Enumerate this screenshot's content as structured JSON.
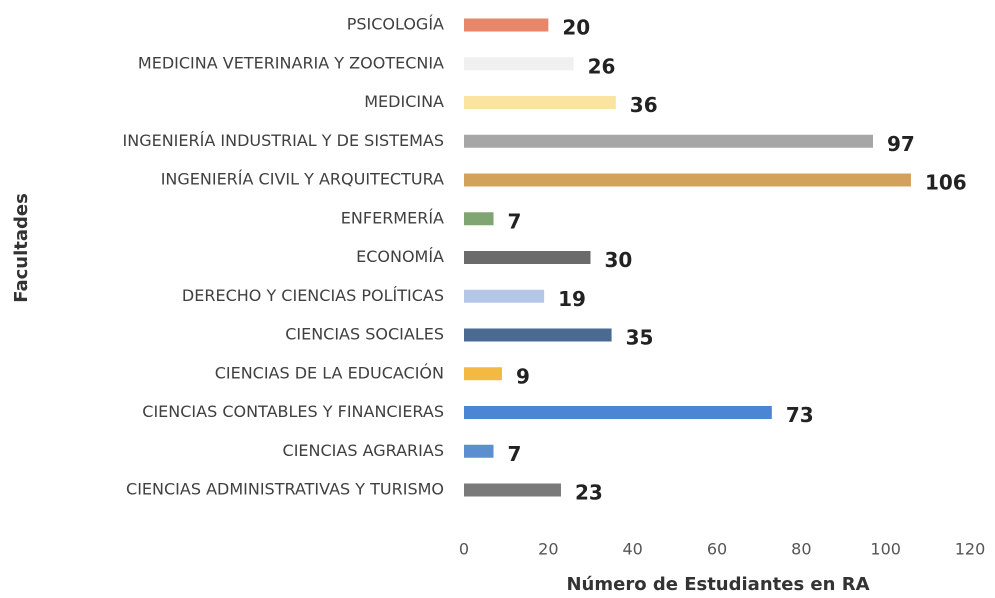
{
  "chart_data": {
    "type": "bar",
    "orientation": "horizontal",
    "x_label": "Número de Estudiantes en RA",
    "y_label": "Facultades",
    "categories": [
      "PSICOLOGÍA",
      "MEDICINA VETERINARIA Y ZOOTECNIA",
      "MEDICINA",
      "INGENIERÍA INDUSTRIAL Y DE SISTEMAS",
      "INGENIERÍA CIVIL Y ARQUITECTURA",
      "ENFERMERÍA",
      "ECONOMÍA",
      "DERECHO Y CIENCIAS POLÍTICAS",
      "CIENCIAS SOCIALES",
      "CIENCIAS DE LA EDUCACIÓN",
      "CIENCIAS CONTABLES Y FINANCIERAS",
      "CIENCIAS AGRARIAS",
      "CIENCIAS ADMINISTRATIVAS Y TURISMO"
    ],
    "values": [
      20,
      26,
      36,
      97,
      106,
      7,
      30,
      19,
      35,
      9,
      73,
      7,
      23
    ],
    "colors": [
      "#e8866a",
      "#f0f0f0",
      "#fbe3a0",
      "#a6a6a6",
      "#d4a15a",
      "#7fa572",
      "#6b6b6b",
      "#b4c7e7",
      "#4a6a92",
      "#f4b942",
      "#4a86d4",
      "#5b8fd0",
      "#7a7a7a"
    ],
    "xlim": [
      0,
      120
    ],
    "xticks": [
      0,
      20,
      40,
      60,
      80,
      100,
      120
    ],
    "grid": false
  }
}
